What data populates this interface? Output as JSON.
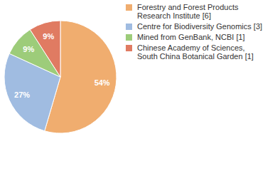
{
  "chart_data": {
    "type": "pie",
    "categories": [
      "Forestry and Forest Products Research Institute [6]",
      "Centre for Biodiversity Genomics [3]",
      "Mined from GenBank, NCBI [1]",
      "Chinese Academy of Sciences, South China Botanical Garden [1]"
    ],
    "values": [
      54,
      27,
      9,
      9
    ],
    "value_labels": [
      "54%",
      "27%",
      "9%",
      "9%"
    ],
    "colors": [
      "#f0ad6f",
      "#a0bce1",
      "#9dcc7a",
      "#e07b62"
    ],
    "data_labels": true,
    "legend": "right"
  }
}
